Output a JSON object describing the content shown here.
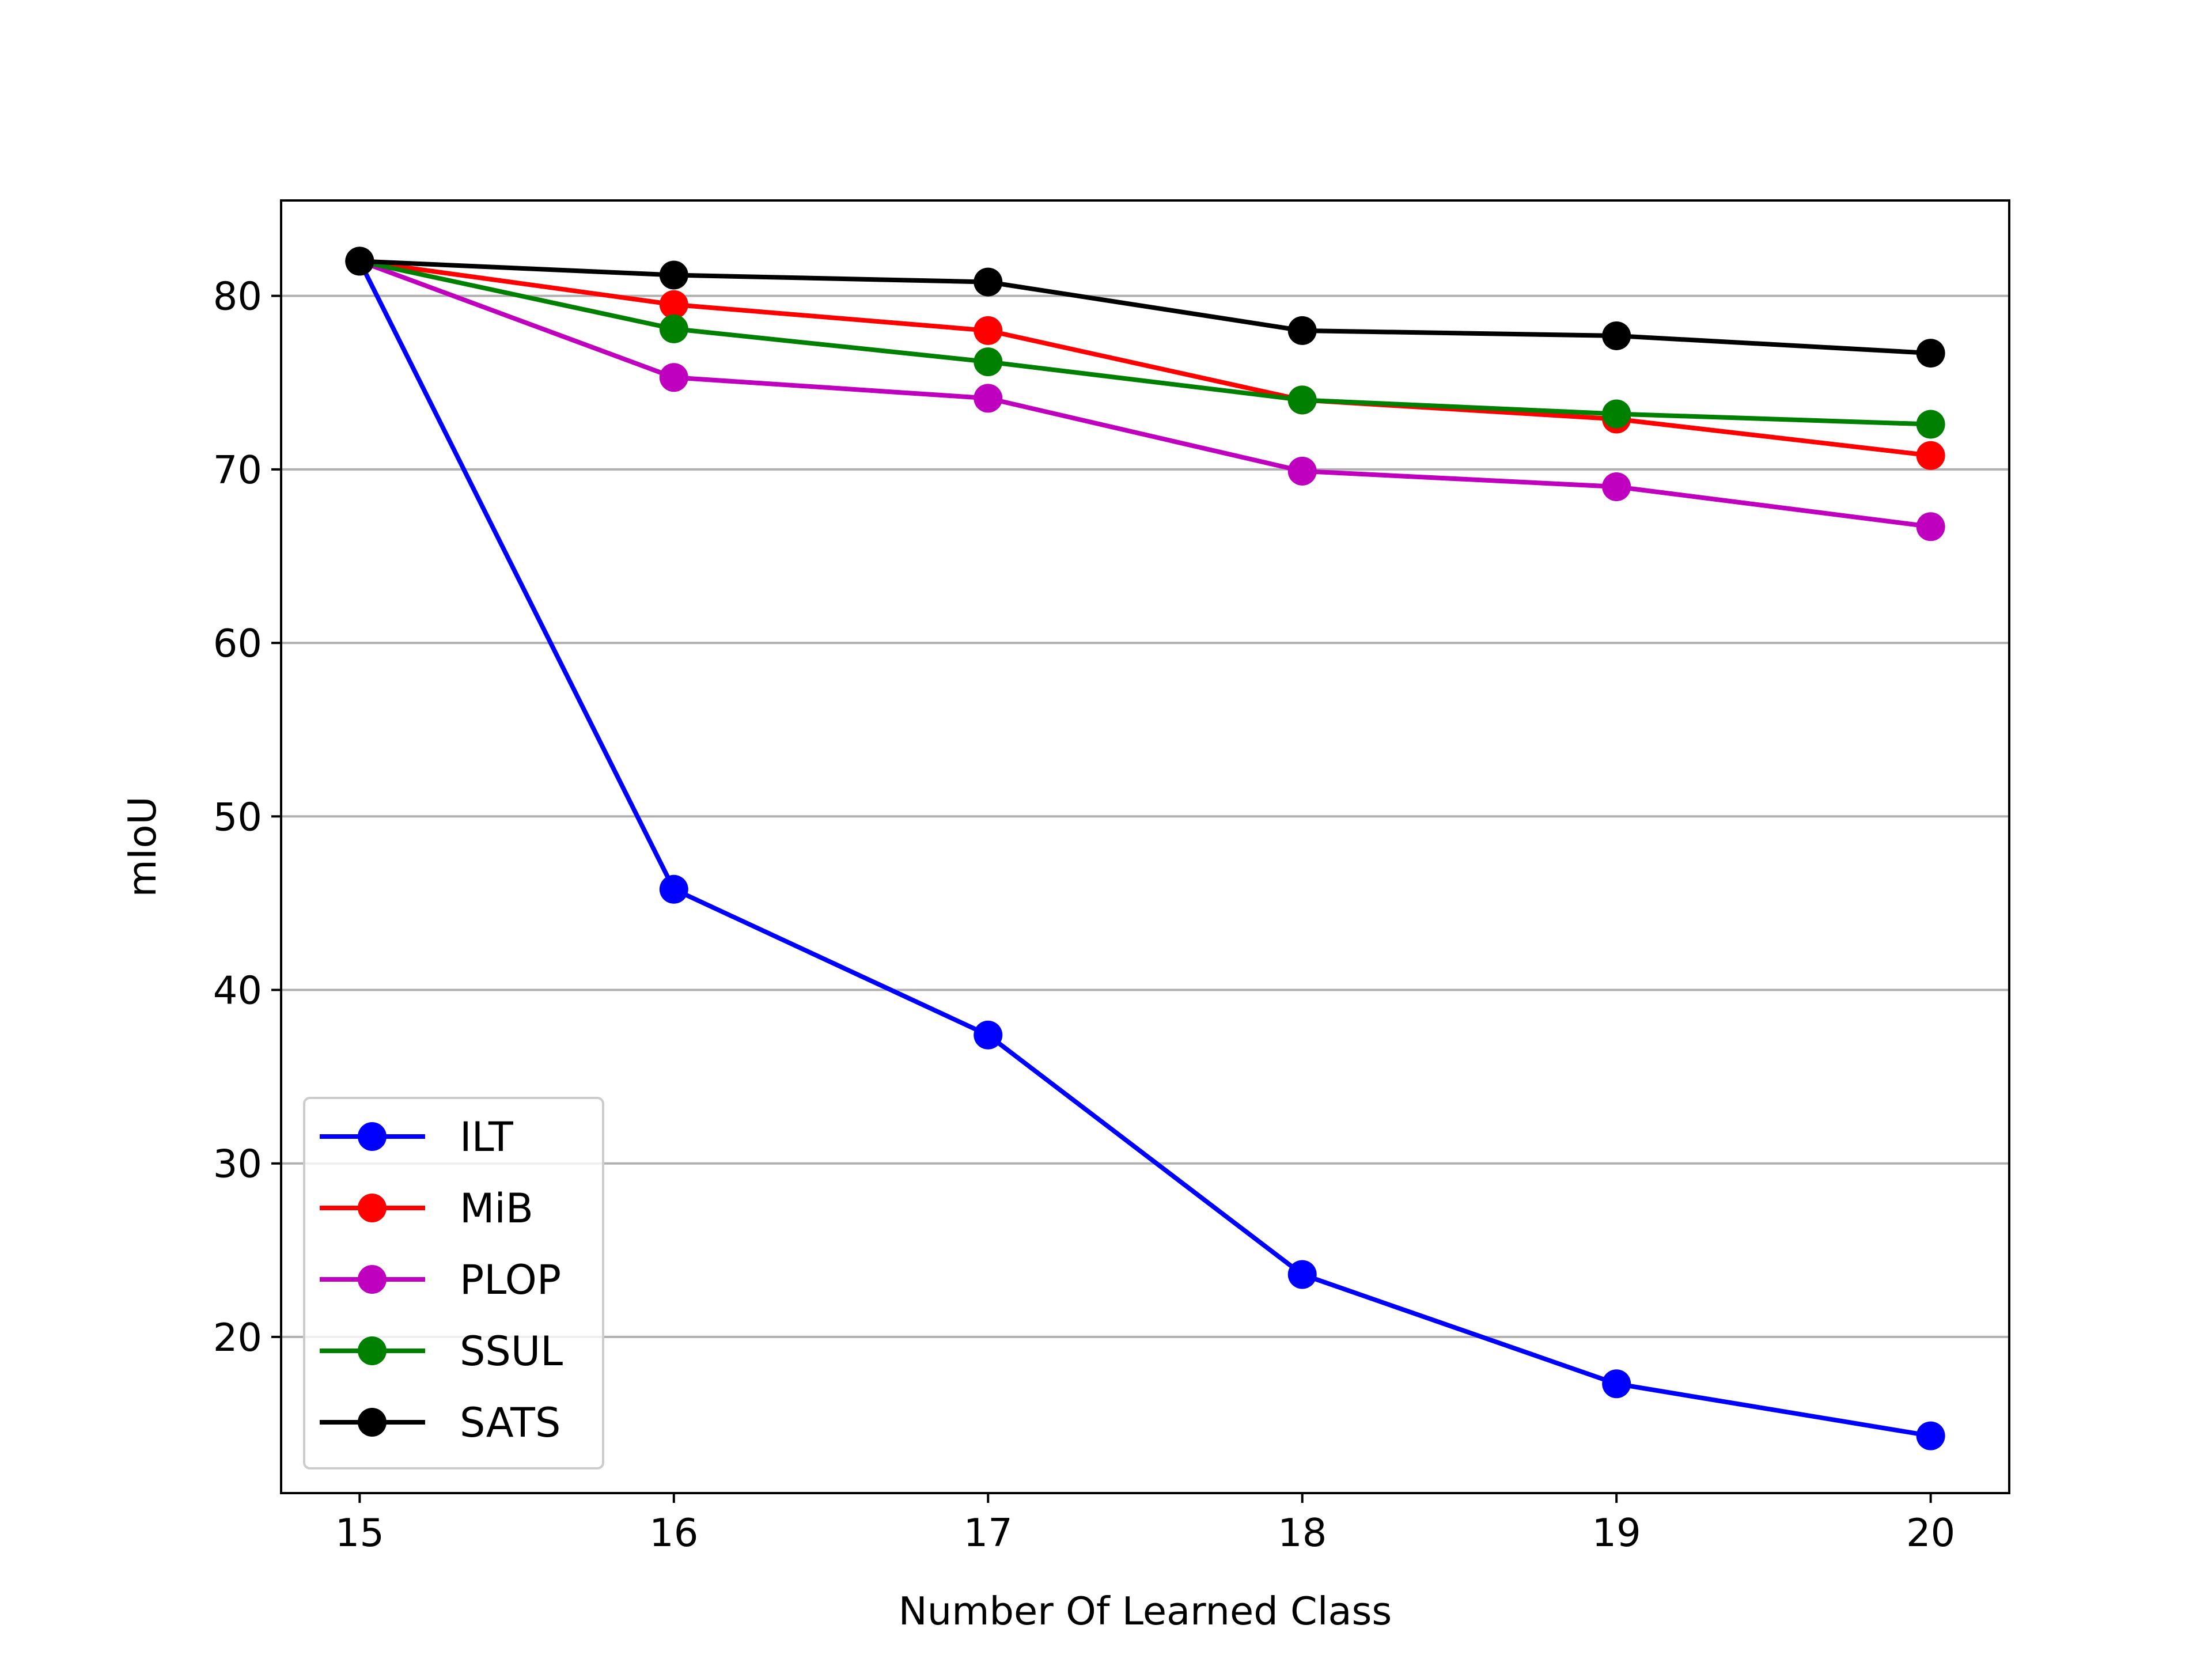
{
  "chart_data": {
    "type": "line",
    "title": "",
    "xlabel": "Number Of Learned Class",
    "ylabel": "mIoU",
    "x": [
      15,
      16,
      17,
      18,
      19,
      20
    ],
    "xlim": [
      14.75,
      20.25
    ],
    "ylim": [
      11.0,
      85.5
    ],
    "xticks": [
      15,
      16,
      17,
      18,
      19,
      20
    ],
    "yticks": [
      20,
      30,
      40,
      50,
      60,
      70,
      80
    ],
    "grid": "horizontal",
    "legend_position": "lower-left",
    "series": [
      {
        "name": "ILT",
        "color": "#0000ff",
        "values": [
          82.0,
          45.8,
          37.4,
          23.6,
          17.3,
          14.3
        ]
      },
      {
        "name": "MiB",
        "color": "#ff0000",
        "values": [
          82.0,
          79.5,
          78.0,
          74.0,
          72.9,
          70.8
        ]
      },
      {
        "name": "PLOP",
        "color": "#bf00bf",
        "values": [
          82.0,
          75.3,
          74.1,
          69.9,
          69.0,
          66.7
        ]
      },
      {
        "name": "SSUL",
        "color": "#008000",
        "values": [
          82.0,
          78.1,
          76.2,
          74.0,
          73.2,
          72.6
        ]
      },
      {
        "name": "SATS",
        "color": "#000000",
        "values": [
          82.0,
          81.2,
          80.8,
          78.0,
          77.7,
          76.7
        ]
      }
    ]
  }
}
